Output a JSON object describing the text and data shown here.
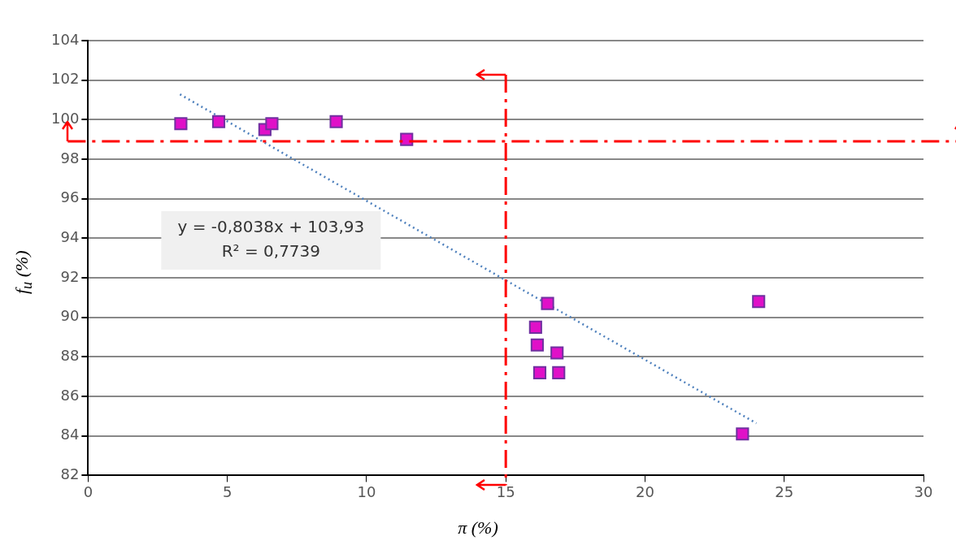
{
  "chart_data": {
    "type": "scatter",
    "xlabel": "π (%)",
    "ylabel": "f$_{u}$ (%)",
    "xlim": [
      0,
      30
    ],
    "xticks": [
      0,
      5,
      10,
      15,
      20,
      25,
      30
    ],
    "ylim": [
      82,
      104
    ],
    "yticks": [
      82,
      84,
      86,
      88,
      90,
      92,
      94,
      96,
      98,
      100,
      102,
      104
    ],
    "grid": "y",
    "legend": false,
    "marker": "square",
    "series": [
      {
        "type": "scatter",
        "color": "#e010c8",
        "x": [
          3.33,
          4.69,
          6.35,
          6.6,
          8.91,
          11.44,
          16.07,
          16.13,
          16.22,
          16.5,
          16.84,
          16.9,
          23.5,
          24.08
        ],
        "values": [
          99.8,
          99.9,
          99.5,
          99.8,
          99.9,
          99.0,
          89.5,
          88.6,
          87.2,
          90.7,
          88.2,
          87.2,
          84.1,
          90.8
        ]
      },
      {
        "type": "line",
        "color": "#4f81bd",
        "marker": "none",
        "line_style": "dotted",
        "x": [
          3.3,
          24
        ],
        "values": [
          101.28,
          84.64
        ]
      }
    ],
    "ref_lines": [
      {
        "axis": "y",
        "value": 98.9,
        "color": "#ff0000",
        "line_style": "dashed"
      },
      {
        "axis": "x",
        "value": 15,
        "color": "#ff0000",
        "line_style": "dashed"
      }
    ],
    "annotations": [
      "y = -0,8038x + 103,93",
      "R² = 0,7739"
    ]
  }
}
